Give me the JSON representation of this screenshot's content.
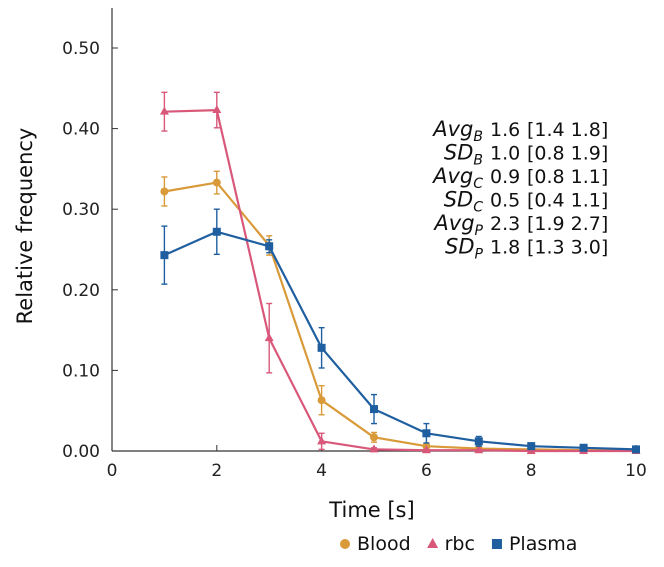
{
  "chart_data": {
    "type": "line",
    "xlabel": "Time [s]",
    "ylabel": "Relative frequency",
    "xlim": [
      0,
      10
    ],
    "ylim": [
      0,
      0.5
    ],
    "x_ticks": [
      0,
      2,
      4,
      6,
      8,
      10
    ],
    "x_tick_labels": [
      "0",
      "2",
      "4",
      "6",
      "8",
      "10"
    ],
    "y_ticks": [
      0,
      0.1,
      0.2,
      0.3,
      0.4,
      0.5
    ],
    "y_tick_labels": [
      "0.00",
      "0.10",
      "0.20",
      "0.30",
      "0.40",
      "0.50"
    ],
    "grid": false,
    "legend_position": "bottom",
    "series": [
      {
        "name": "Blood",
        "color": "#d99a3a",
        "marker": "circle",
        "x": [
          1,
          2,
          3,
          4,
          5,
          6,
          7,
          8,
          9,
          10
        ],
        "values": [
          0.322,
          0.333,
          0.255,
          0.063,
          0.017,
          0.006,
          0.003,
          0.002,
          0.001,
          0.001
        ],
        "err": [
          0.018,
          0.014,
          0.012,
          0.018,
          0.006,
          0.003,
          0.002,
          0.001,
          0.001,
          0.001
        ]
      },
      {
        "name": "rbc",
        "color": "#d9587a",
        "marker": "triangle",
        "x": [
          1,
          2,
          3,
          4,
          5,
          6,
          7,
          8,
          9,
          10
        ],
        "values": [
          0.421,
          0.423,
          0.14,
          0.012,
          0.002,
          0.001,
          0.001,
          0.0,
          0.0,
          0.0
        ],
        "err": [
          0.024,
          0.022,
          0.043,
          0.01,
          0.002,
          0.001,
          0.001,
          0.0,
          0.0,
          0.0
        ]
      },
      {
        "name": "Plasma",
        "color": "#1f5fa0",
        "marker": "square",
        "x": [
          1,
          2,
          3,
          4,
          5,
          6,
          7,
          8,
          9,
          10
        ],
        "values": [
          0.243,
          0.272,
          0.254,
          0.128,
          0.052,
          0.022,
          0.012,
          0.006,
          0.004,
          0.002
        ],
        "err": [
          0.036,
          0.028,
          0.008,
          0.025,
          0.018,
          0.012,
          0.006,
          0.004,
          0.003,
          0.002
        ]
      }
    ],
    "annotations": [
      {
        "name": "Avg",
        "sub": "B",
        "value": "1.6",
        "ci": "[1.4 1.8]"
      },
      {
        "name": "SD",
        "sub": "B",
        "value": "1.0",
        "ci": "[0.8 1.9]"
      },
      {
        "name": "Avg",
        "sub": "C",
        "value": "0.9",
        "ci": "[0.8 1.1]"
      },
      {
        "name": "SD",
        "sub": "C",
        "value": "0.5",
        "ci": "[0.4 1.1]"
      },
      {
        "name": "Avg",
        "sub": "P",
        "value": "2.3",
        "ci": "[1.9 2.7]"
      },
      {
        "name": "SD",
        "sub": "P",
        "value": "1.8",
        "ci": "[1.3 3.0]"
      }
    ]
  }
}
